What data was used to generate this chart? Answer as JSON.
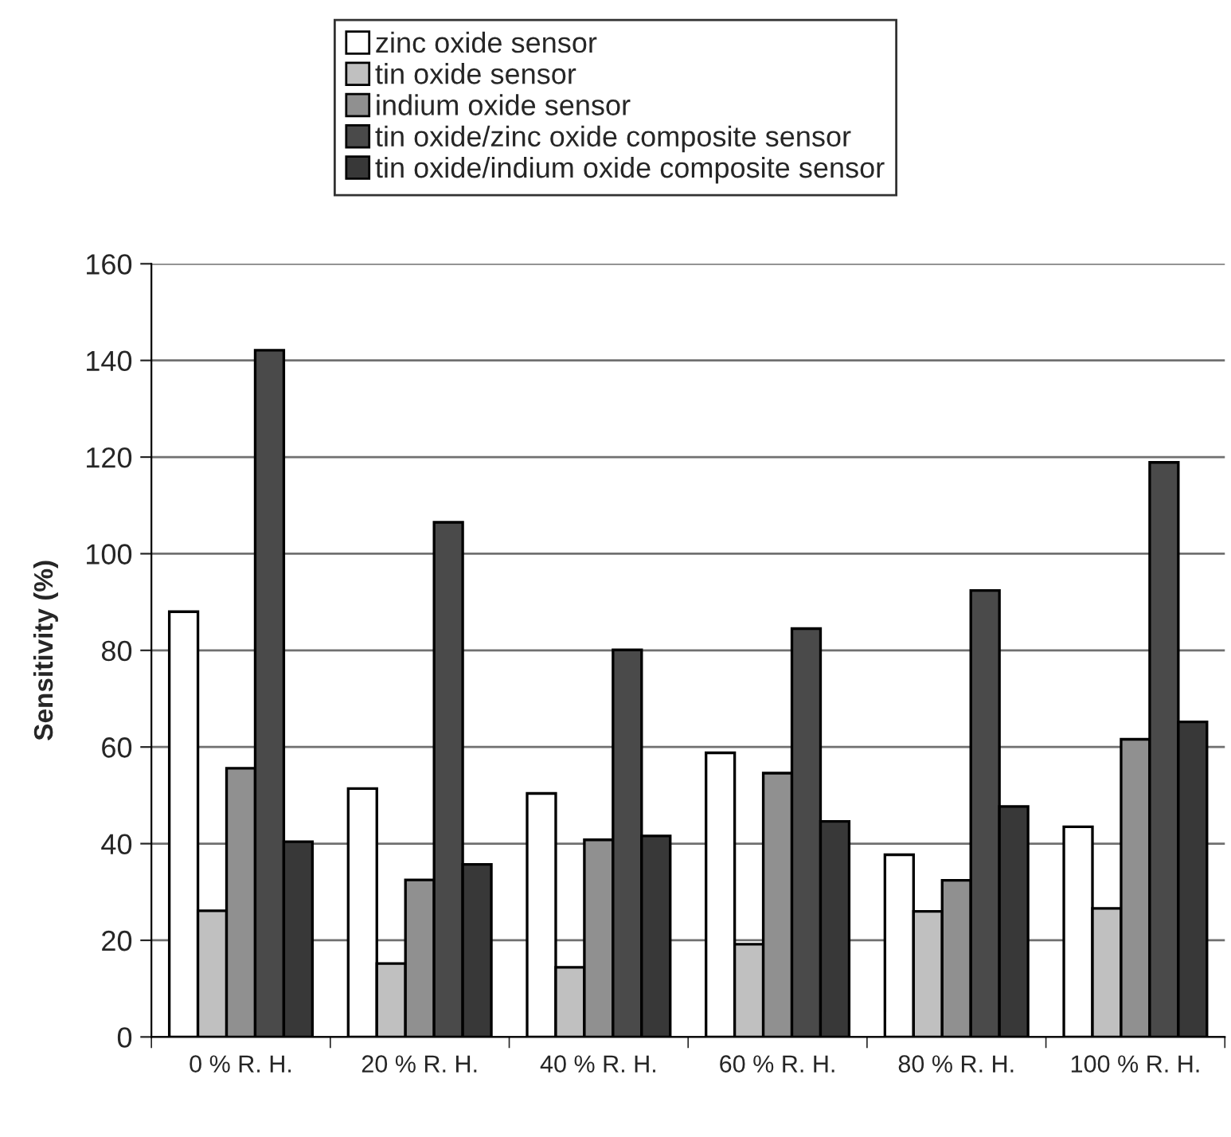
{
  "chart_data": {
    "type": "bar",
    "ylabel": "Sensitivity (%)",
    "categories": [
      "0 % R. H.",
      "20 % R. H.",
      "40 % R. H.",
      "60 % R. H.",
      "80 % R. H.",
      "100 % R. H."
    ],
    "series": [
      {
        "name": "zinc oxide sensor",
        "color": "#ffffff",
        "values": [
          88.0,
          51.4,
          50.4,
          58.8,
          37.7,
          43.5
        ]
      },
      {
        "name": "tin oxide sensor",
        "color": "#c0c0c0",
        "values": [
          26.1,
          15.2,
          14.4,
          19.2,
          26.0,
          26.6
        ]
      },
      {
        "name": "indium oxide sensor",
        "color": "#909090",
        "values": [
          55.6,
          32.5,
          40.8,
          54.6,
          32.4,
          61.6
        ]
      },
      {
        "name": "tin oxide/zinc oxide composite sensor",
        "color": "#4a4a4a",
        "values": [
          142.1,
          106.5,
          80.1,
          84.5,
          92.4,
          118.9
        ]
      },
      {
        "name": "tin oxide/indium oxide composite sensor",
        "color": "#383838",
        "values": [
          40.4,
          35.7,
          41.6,
          44.6,
          47.7,
          65.2
        ]
      }
    ],
    "ylim": [
      0,
      160
    ],
    "yticks": [
      0,
      20,
      40,
      60,
      80,
      100,
      120,
      140,
      160
    ],
    "grid": "y",
    "legend": "top"
  }
}
